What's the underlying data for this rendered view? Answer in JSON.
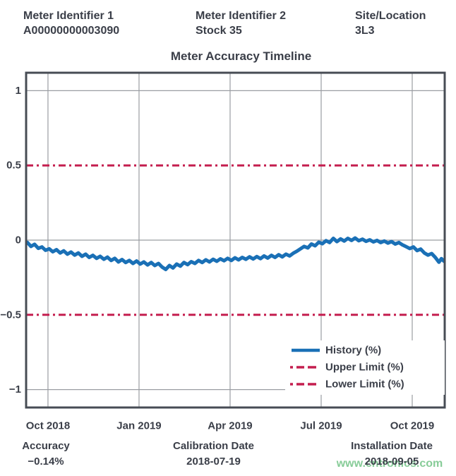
{
  "header": {
    "col1": {
      "label": "Meter Identifier 1",
      "value": "A00000000003090"
    },
    "col2": {
      "label": "Meter Identifier 2",
      "value": "Stock 35"
    },
    "col3": {
      "label": "Site/Location",
      "value": "3L3"
    }
  },
  "footer": {
    "accuracy": {
      "label": "Accuracy",
      "value": "−0.14%"
    },
    "calibration": {
      "label": "Calibration Date",
      "value": "2018-07-19"
    },
    "installation": {
      "label": "Installation Date",
      "value": "2018-09-05"
    },
    "watermark": "www.cntronics.com"
  },
  "colors": {
    "history": "#1a70b6",
    "limit": "#c41e4f",
    "text": "#3a3e48",
    "grid": "#9a9da2",
    "border": "#474c54",
    "legend_bg": "#ffffff",
    "watermark": "#87cc98"
  },
  "chart_data": {
    "type": "line",
    "title": "Meter Accuracy Timeline",
    "xlabel": "",
    "ylabel": "",
    "x_unit": "months since Oct 2018 tick",
    "x_range": [
      -0.72,
      13.07
    ],
    "y_range": [
      -1.12,
      1.12
    ],
    "grid": true,
    "grid_y_values": [
      1,
      0,
      -1
    ],
    "x_ticks": [
      {
        "m": 0,
        "label": "Oct 2018"
      },
      {
        "m": 3,
        "label": "Jan 2019"
      },
      {
        "m": 6,
        "label": "Apr 2019"
      },
      {
        "m": 9,
        "label": "Jul 2019"
      },
      {
        "m": 12,
        "label": "Oct 2019"
      }
    ],
    "y_ticks": [
      {
        "v": 1,
        "label": "1"
      },
      {
        "v": 0.5,
        "label": "0.5"
      },
      {
        "v": 0,
        "label": "0"
      },
      {
        "v": -0.5,
        "label": "−0.5"
      },
      {
        "v": -1,
        "label": "−1"
      }
    ],
    "upper_limit": 0.5,
    "lower_limit": -0.5,
    "legend_position": "bottom-right",
    "legend": [
      {
        "label": "History (%)",
        "style": "solid",
        "color_key": "history"
      },
      {
        "label": "Upper Limit (%)",
        "style": "dashdot",
        "color_key": "limit"
      },
      {
        "label": "Lower Limit (%)",
        "style": "dashdot",
        "color_key": "limit"
      }
    ],
    "series": [
      {
        "name": "History (%)",
        "points": [
          [
            -0.68,
            -0.015
          ],
          [
            -0.56,
            -0.042
          ],
          [
            -0.44,
            -0.028
          ],
          [
            -0.32,
            -0.055
          ],
          [
            -0.2,
            -0.046
          ],
          [
            -0.08,
            -0.068
          ],
          [
            0.04,
            -0.058
          ],
          [
            0.16,
            -0.078
          ],
          [
            0.28,
            -0.064
          ],
          [
            0.4,
            -0.086
          ],
          [
            0.52,
            -0.072
          ],
          [
            0.64,
            -0.094
          ],
          [
            0.76,
            -0.08
          ],
          [
            0.88,
            -0.1
          ],
          [
            1.0,
            -0.086
          ],
          [
            1.12,
            -0.108
          ],
          [
            1.24,
            -0.094
          ],
          [
            1.36,
            -0.116
          ],
          [
            1.48,
            -0.102
          ],
          [
            1.6,
            -0.122
          ],
          [
            1.72,
            -0.108
          ],
          [
            1.84,
            -0.128
          ],
          [
            1.96,
            -0.114
          ],
          [
            2.08,
            -0.136
          ],
          [
            2.2,
            -0.122
          ],
          [
            2.32,
            -0.146
          ],
          [
            2.44,
            -0.13
          ],
          [
            2.56,
            -0.15
          ],
          [
            2.68,
            -0.136
          ],
          [
            2.8,
            -0.156
          ],
          [
            2.92,
            -0.14
          ],
          [
            3.04,
            -0.16
          ],
          [
            3.16,
            -0.146
          ],
          [
            3.28,
            -0.166
          ],
          [
            3.4,
            -0.15
          ],
          [
            3.52,
            -0.17
          ],
          [
            3.64,
            -0.156
          ],
          [
            3.76,
            -0.18
          ],
          [
            3.88,
            -0.196
          ],
          [
            4.0,
            -0.17
          ],
          [
            4.12,
            -0.186
          ],
          [
            4.24,
            -0.16
          ],
          [
            4.36,
            -0.174
          ],
          [
            4.48,
            -0.15
          ],
          [
            4.6,
            -0.164
          ],
          [
            4.72,
            -0.144
          ],
          [
            4.84,
            -0.156
          ],
          [
            4.96,
            -0.136
          ],
          [
            5.08,
            -0.15
          ],
          [
            5.2,
            -0.132
          ],
          [
            5.32,
            -0.146
          ],
          [
            5.44,
            -0.128
          ],
          [
            5.56,
            -0.142
          ],
          [
            5.68,
            -0.125
          ],
          [
            5.8,
            -0.138
          ],
          [
            5.92,
            -0.122
          ],
          [
            6.04,
            -0.136
          ],
          [
            6.16,
            -0.118
          ],
          [
            6.28,
            -0.132
          ],
          [
            6.4,
            -0.116
          ],
          [
            6.52,
            -0.128
          ],
          [
            6.64,
            -0.112
          ],
          [
            6.76,
            -0.126
          ],
          [
            6.88,
            -0.11
          ],
          [
            7.0,
            -0.124
          ],
          [
            7.12,
            -0.106
          ],
          [
            7.24,
            -0.12
          ],
          [
            7.36,
            -0.102
          ],
          [
            7.48,
            -0.116
          ],
          [
            7.6,
            -0.098
          ],
          [
            7.72,
            -0.112
          ],
          [
            7.84,
            -0.094
          ],
          [
            7.96,
            -0.106
          ],
          [
            8.08,
            -0.088
          ],
          [
            8.2,
            -0.074
          ],
          [
            8.32,
            -0.058
          ],
          [
            8.44,
            -0.042
          ],
          [
            8.56,
            -0.052
          ],
          [
            8.68,
            -0.026
          ],
          [
            8.8,
            -0.038
          ],
          [
            8.92,
            -0.014
          ],
          [
            9.04,
            -0.024
          ],
          [
            9.16,
            -0.004
          ],
          [
            9.28,
            -0.016
          ],
          [
            9.4,
            0.012
          ],
          [
            9.52,
            -0.01
          ],
          [
            9.64,
            0.008
          ],
          [
            9.76,
            -0.006
          ],
          [
            9.88,
            0.012
          ],
          [
            10.0,
            -0.002
          ],
          [
            10.12,
            0.014
          ],
          [
            10.24,
            -0.004
          ],
          [
            10.36,
            0.006
          ],
          [
            10.48,
            -0.008
          ],
          [
            10.6,
            0.002
          ],
          [
            10.72,
            -0.012
          ],
          [
            10.84,
            -0.002
          ],
          [
            10.96,
            -0.016
          ],
          [
            11.08,
            -0.006
          ],
          [
            11.2,
            -0.02
          ],
          [
            11.32,
            -0.01
          ],
          [
            11.44,
            -0.026
          ],
          [
            11.56,
            -0.016
          ],
          [
            11.68,
            -0.032
          ],
          [
            11.8,
            -0.044
          ],
          [
            11.92,
            -0.056
          ],
          [
            12.04,
            -0.046
          ],
          [
            12.16,
            -0.07
          ],
          [
            12.28,
            -0.06
          ],
          [
            12.4,
            -0.086
          ],
          [
            12.52,
            -0.1
          ],
          [
            12.64,
            -0.09
          ],
          [
            12.76,
            -0.116
          ],
          [
            12.88,
            -0.148
          ],
          [
            12.96,
            -0.124
          ],
          [
            13.05,
            -0.142
          ]
        ]
      }
    ]
  }
}
